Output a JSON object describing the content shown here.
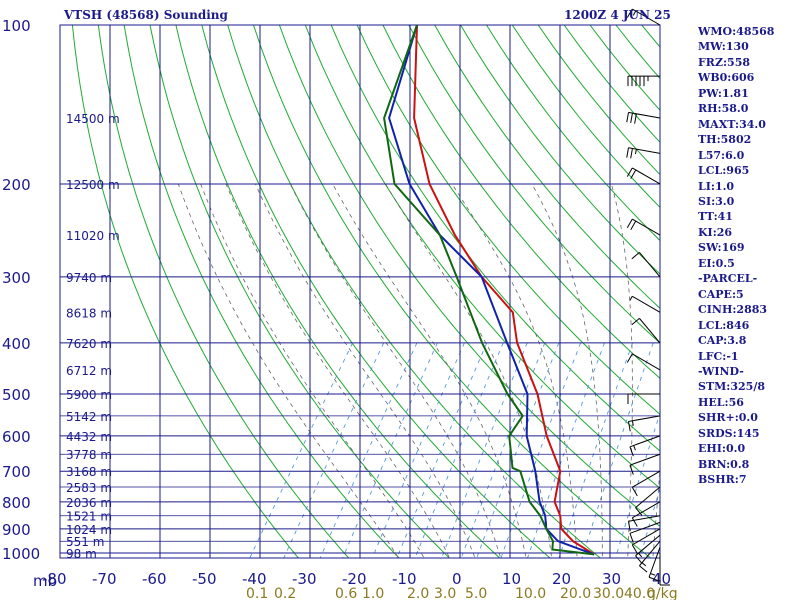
{
  "title_left": "VTSH (48568) Sounding",
  "title_right": "1200Z  4 JUN 25",
  "indices": [
    "WMO:48568",
    "MW:130",
    "FRZ:558",
    "WB0:606",
    "PW:1.81",
    "RH:58.0",
    "MAXT:34.0",
    "TH:5802",
    "L57:6.0",
    "LCL:965",
    "LI:1.0",
    "SI:3.0",
    "TT:41",
    "KI:26",
    "SW:169",
    "EI:0.5",
    "-PARCEL-",
    "CAPE:5",
    "CINH:2883",
    "LCL:846",
    "CAP:3.8",
    "LFC:-1",
    "-WIND-",
    "STM:325/8",
    "HEL:56",
    "SHR+:0.0",
    "SRDS:145",
    "EHI:0.0",
    "BRN:0.8",
    "BSHR:7"
  ],
  "colors": {
    "frame": "#1a1a8c",
    "dry_adiabat": "#22aa33",
    "moist_adiabat": "#666666",
    "mixing_ratio": "#5599dd",
    "temperature": "#cc1111",
    "dewpoint": "#116611",
    "parcel": "#1122aa",
    "mixing_label": "#8a7a20",
    "wind": "#000000"
  },
  "chart_data": {
    "type": "skew-t log-p",
    "pressure_unit": "mb",
    "pressure_levels": [
      100,
      200,
      300,
      400,
      500,
      600,
      700,
      800,
      900,
      1000
    ],
    "temperature_ticks": [
      -80,
      -70,
      -60,
      -50,
      -40,
      -30,
      -20,
      -10,
      0,
      10,
      20,
      30,
      40
    ],
    "height_labels": [
      {
        "p": 150,
        "label": "14500 m"
      },
      {
        "p": 200,
        "label": "12500 m"
      },
      {
        "p": 250,
        "label": "11020 m"
      },
      {
        "p": 300,
        "label": "9740 m"
      },
      {
        "p": 350,
        "label": "8618 m"
      },
      {
        "p": 400,
        "label": "7620 m"
      },
      {
        "p": 450,
        "label": "6712 m"
      },
      {
        "p": 500,
        "label": "5900 m"
      },
      {
        "p": 550,
        "label": "5142 m"
      },
      {
        "p": 600,
        "label": "4432 m"
      },
      {
        "p": 650,
        "label": "3778 m"
      },
      {
        "p": 700,
        "label": "3168 m"
      },
      {
        "p": 750,
        "label": "2583 m"
      },
      {
        "p": 800,
        "label": "2036 m"
      },
      {
        "p": 850,
        "label": "1521 m"
      },
      {
        "p": 900,
        "label": "1024 m"
      },
      {
        "p": 950,
        "label": "551 m"
      },
      {
        "p": 1000,
        "label": "98 m"
      }
    ],
    "mixing_ratio_labels": [
      "0.1",
      "0.2",
      "0.6",
      "1.0",
      "2.0",
      "3.0",
      "5.0",
      "10.0",
      "20.0",
      "30.0",
      "40.0"
    ],
    "mixing_ratio_unit": "g/kg",
    "temperature_profile": [
      [
        1006,
        27
      ],
      [
        950,
        21
      ],
      [
        900,
        17
      ],
      [
        850,
        15
      ],
      [
        800,
        12
      ],
      [
        700,
        9
      ],
      [
        600,
        1.5
      ],
      [
        500,
        -6
      ],
      [
        400,
        -17
      ],
      [
        350,
        -22
      ],
      [
        300,
        -33
      ],
      [
        250,
        -44
      ],
      [
        200,
        -56
      ],
      [
        150,
        -68
      ],
      [
        100,
        -80
      ]
    ],
    "dewpoint_profile": [
      [
        1006,
        27
      ],
      [
        985,
        18
      ],
      [
        950,
        17
      ],
      [
        900,
        14
      ],
      [
        850,
        11
      ],
      [
        800,
        7
      ],
      [
        700,
        1
      ],
      [
        690,
        -1
      ],
      [
        600,
        -6
      ],
      [
        550,
        -6
      ],
      [
        500,
        -12
      ],
      [
        400,
        -24
      ],
      [
        300,
        -38
      ],
      [
        250,
        -47
      ],
      [
        200,
        -63
      ],
      [
        150,
        -74
      ],
      [
        100,
        -80
      ]
    ],
    "parcel_profile": [
      [
        1006,
        27
      ],
      [
        950,
        18
      ],
      [
        900,
        14
      ],
      [
        850,
        12
      ],
      [
        800,
        9
      ],
      [
        700,
        4
      ],
      [
        600,
        -2.5
      ],
      [
        500,
        -8
      ],
      [
        400,
        -19
      ],
      [
        300,
        -33
      ],
      [
        250,
        -47
      ],
      [
        200,
        -60
      ],
      [
        150,
        -73
      ],
      [
        100,
        -80
      ]
    ],
    "winds": [
      {
        "p": 1000,
        "dir": 180,
        "spd": 10
      },
      {
        "p": 975,
        "dir": 200,
        "spd": 15
      },
      {
        "p": 950,
        "dir": 220,
        "spd": 15
      },
      {
        "p": 925,
        "dir": 230,
        "spd": 15
      },
      {
        "p": 900,
        "dir": 240,
        "spd": 10
      },
      {
        "p": 875,
        "dir": 250,
        "spd": 10
      },
      {
        "p": 850,
        "dir": 260,
        "spd": 10
      },
      {
        "p": 800,
        "dir": 240,
        "spd": 10
      },
      {
        "p": 750,
        "dir": 230,
        "spd": 10
      },
      {
        "p": 700,
        "dir": 240,
        "spd": 10
      },
      {
        "p": 650,
        "dir": 250,
        "spd": 10
      },
      {
        "p": 600,
        "dir": 250,
        "spd": 15
      },
      {
        "p": 550,
        "dir": 260,
        "spd": 15
      },
      {
        "p": 500,
        "dir": 270,
        "spd": 10
      },
      {
        "p": 450,
        "dir": 300,
        "spd": 10
      },
      {
        "p": 400,
        "dir": 320,
        "spd": 10
      },
      {
        "p": 350,
        "dir": 300,
        "spd": 5
      },
      {
        "p": 300,
        "dir": 320,
        "spd": 10
      },
      {
        "p": 250,
        "dir": 300,
        "spd": 20
      },
      {
        "p": 200,
        "dir": 300,
        "spd": 20
      },
      {
        "p": 175,
        "dir": 280,
        "spd": 25
      },
      {
        "p": 150,
        "dir": 280,
        "spd": 30
      },
      {
        "p": 125,
        "dir": 270,
        "spd": 55
      },
      {
        "p": 100,
        "dir": 300,
        "spd": 15
      }
    ]
  }
}
